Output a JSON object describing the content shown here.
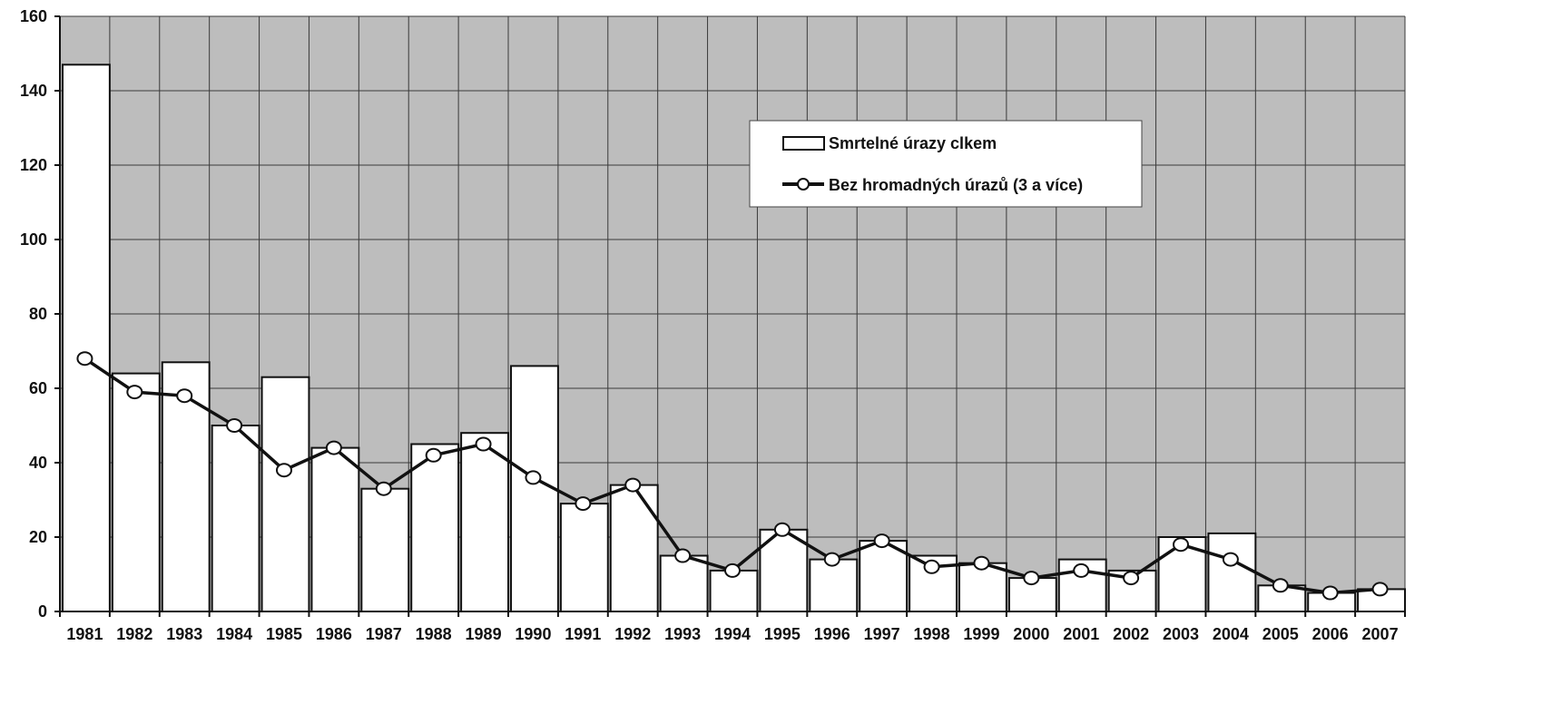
{
  "chart_data": {
    "type": "bar",
    "categories": [
      "1981",
      "1982",
      "1983",
      "1984",
      "1985",
      "1986",
      "1987",
      "1988",
      "1989",
      "1990",
      "1991",
      "1992",
      "1993",
      "1994",
      "1995",
      "1996",
      "1997",
      "1998",
      "1999",
      "2000",
      "2001",
      "2002",
      "2003",
      "2004",
      "2005",
      "2006",
      "2007"
    ],
    "series": [
      {
        "name": "Smrtelné úrazy clkem",
        "type": "bar",
        "values": [
          147,
          64,
          67,
          50,
          63,
          44,
          33,
          45,
          48,
          66,
          29,
          34,
          15,
          11,
          22,
          14,
          19,
          15,
          13,
          9,
          14,
          11,
          20,
          21,
          7,
          5,
          6
        ]
      },
      {
        "name": "Bez hromadných úrazů (3 a více)",
        "type": "line",
        "values": [
          68,
          59,
          58,
          50,
          38,
          44,
          33,
          42,
          45,
          36,
          29,
          34,
          15,
          11,
          22,
          14,
          19,
          12,
          13,
          9,
          11,
          9,
          18,
          14,
          7,
          5,
          6
        ]
      }
    ],
    "ylim": [
      0,
      160
    ],
    "yticks": [
      0,
      20,
      40,
      60,
      80,
      100,
      120,
      140,
      160
    ],
    "grid": true,
    "legend_position": "top-right",
    "colors": {
      "plot_background": "#bdbdbd",
      "grid": "#3a3a3a",
      "bar_fill": "#ffffff",
      "bar_stroke": "#111111",
      "line": "#111111",
      "marker_fill": "#ffffff"
    }
  }
}
